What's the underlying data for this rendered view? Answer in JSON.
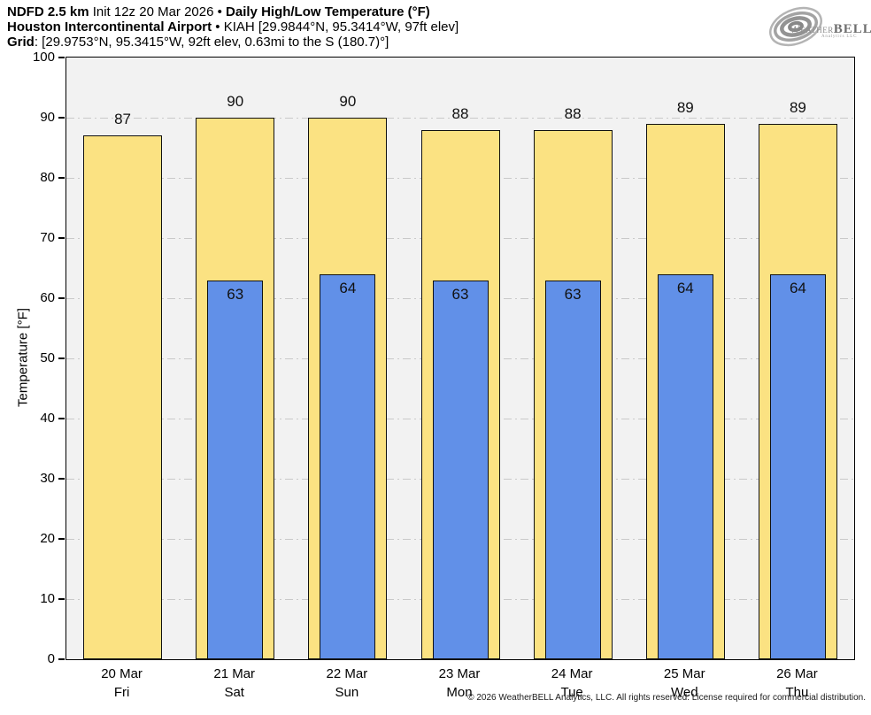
{
  "header": {
    "line1_bold1": "NDFD 2.5 km",
    "line1_regular": " Init 12z 20 Mar 2026 • ",
    "line1_bold2": "Daily High/Low Temperature (°F)",
    "line2_bold": "Houston Intercontinental Airport",
    "line2_regular": " • KIAH [29.9844°N, 95.3414°W, 97ft elev]",
    "line3_bold": "Grid",
    "line3_regular": ": [29.9753°N, 95.3415°W, 92ft elev, 0.63mi to the S (180.7)°]"
  },
  "logo": {
    "brand_weather": "Weather",
    "brand_bell": "BELL",
    "subtext": "Analytics LLC"
  },
  "footer": {
    "copyright": "© 2026 WeatherBELL Analytics, LLC. All rights reserved. License required for commercial distribution."
  },
  "chart_data": {
    "type": "bar",
    "title": "Daily High/Low Temperature (°F)",
    "ylabel": "Temperature [°F]",
    "ylim": [
      0,
      100
    ],
    "yticks": [
      0,
      10,
      20,
      30,
      40,
      50,
      60,
      70,
      80,
      90,
      100
    ],
    "grid": "horizontal dash-dot gridlines, light gray",
    "legend_position": "none",
    "plot_background": "#f2f2f2",
    "bar_style": "low bar overlaid centered on high bar, black outlines, value labels",
    "categories": [
      {
        "date": "20 Mar",
        "day": "Fri"
      },
      {
        "date": "21 Mar",
        "day": "Sat"
      },
      {
        "date": "22 Mar",
        "day": "Sun"
      },
      {
        "date": "23 Mar",
        "day": "Mon"
      },
      {
        "date": "24 Mar",
        "day": "Tue"
      },
      {
        "date": "25 Mar",
        "day": "Wed"
      },
      {
        "date": "26 Mar",
        "day": "Thu"
      }
    ],
    "series": [
      {
        "name": "High",
        "color": "#fbe282",
        "values": [
          87,
          90,
          90,
          88,
          88,
          89,
          89
        ]
      },
      {
        "name": "Low",
        "color": "#6190e8",
        "values": [
          null,
          63,
          64,
          63,
          63,
          64,
          64
        ]
      }
    ]
  }
}
